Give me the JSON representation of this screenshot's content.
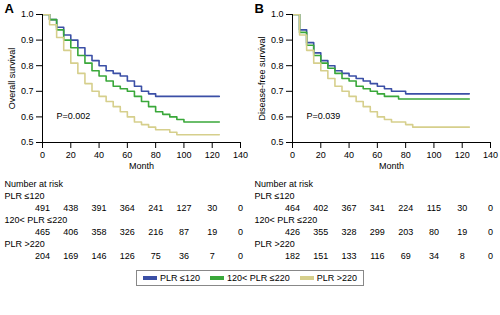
{
  "chart_data": [
    {
      "type": "line",
      "panel": "A",
      "annotation": "P=0.002",
      "x_label": "Month",
      "y_label": "Overall survival",
      "xlim": [
        0,
        140
      ],
      "xticks": [
        0,
        20,
        40,
        60,
        80,
        100,
        120,
        140
      ],
      "ylim": [
        0.5,
        1.0
      ],
      "yticks": [
        0.5,
        0.6,
        0.7,
        0.8,
        0.9,
        {
          "value": 1,
          "label": "1.0"
        }
      ],
      "grid": false,
      "legend": "bottom",
      "line_style": "step",
      "x": [
        0,
        5,
        10,
        15,
        20,
        25,
        30,
        35,
        40,
        45,
        50,
        55,
        60,
        65,
        70,
        75,
        80,
        85,
        90,
        95,
        100,
        105,
        110,
        115,
        120,
        125
      ],
      "series": [
        {
          "name": "PLR ≤120",
          "color": "#3b4fa6",
          "values": [
            1.0,
            0.98,
            0.95,
            0.92,
            0.9,
            0.87,
            0.84,
            0.82,
            0.8,
            0.78,
            0.77,
            0.76,
            0.74,
            0.72,
            0.7,
            0.69,
            0.68,
            0.68,
            0.68,
            0.68,
            0.68,
            0.68,
            0.68,
            0.68,
            0.68,
            0.68
          ]
        },
        {
          "name": "120< PLR ≤220",
          "color": "#3aa83a",
          "values": [
            1.0,
            0.98,
            0.94,
            0.9,
            0.87,
            0.84,
            0.81,
            0.78,
            0.76,
            0.74,
            0.72,
            0.71,
            0.7,
            0.68,
            0.66,
            0.64,
            0.62,
            0.61,
            0.6,
            0.59,
            0.58,
            0.58,
            0.58,
            0.58,
            0.58,
            0.58
          ]
        },
        {
          "name": "PLR >220",
          "color": "#d6cf8c",
          "values": [
            1.0,
            0.96,
            0.91,
            0.86,
            0.81,
            0.77,
            0.73,
            0.7,
            0.68,
            0.66,
            0.64,
            0.62,
            0.6,
            0.58,
            0.57,
            0.56,
            0.55,
            0.55,
            0.54,
            0.53,
            0.53,
            0.53,
            0.53,
            0.53,
            0.53,
            0.53
          ]
        }
      ],
      "risk_table": {
        "title": "Number at risk",
        "x": [
          0,
          20,
          40,
          60,
          80,
          100,
          120,
          140
        ],
        "rows": [
          {
            "label": "PLR ≤120",
            "values": [
              491,
              438,
              391,
              364,
              241,
              127,
              30,
              0
            ]
          },
          {
            "label": "120< PLR ≤220",
            "values": [
              465,
              406,
              358,
              326,
              216,
              87,
              19,
              0
            ]
          },
          {
            "label": "PLR >220",
            "values": [
              204,
              169,
              146,
              126,
              75,
              36,
              7,
              0
            ]
          }
        ]
      }
    },
    {
      "type": "line",
      "panel": "B",
      "annotation": "P=0.039",
      "x_label": "Month",
      "y_label": "Disease-free survival",
      "xlim": [
        0,
        140
      ],
      "xticks": [
        0,
        20,
        40,
        60,
        80,
        100,
        120,
        140
      ],
      "ylim": [
        0.5,
        1.0
      ],
      "yticks": [
        0.5,
        0.6,
        0.7,
        0.8,
        0.9,
        {
          "value": 1,
          "label": "1.0"
        }
      ],
      "grid": false,
      "legend": "bottom",
      "line_style": "step",
      "x": [
        0,
        5,
        10,
        15,
        20,
        25,
        30,
        35,
        40,
        45,
        50,
        55,
        60,
        65,
        70,
        75,
        80,
        85,
        90,
        95,
        100,
        105,
        110,
        115,
        120,
        125
      ],
      "series": [
        {
          "name": "PLR ≤120",
          "color": "#3b4fa6",
          "values": [
            1.0,
            0.94,
            0.89,
            0.85,
            0.82,
            0.8,
            0.78,
            0.77,
            0.76,
            0.75,
            0.74,
            0.73,
            0.72,
            0.71,
            0.7,
            0.7,
            0.69,
            0.69,
            0.69,
            0.69,
            0.69,
            0.69,
            0.69,
            0.69,
            0.69,
            0.69
          ]
        },
        {
          "name": "120< PLR ≤220",
          "color": "#3aa83a",
          "values": [
            1.0,
            0.93,
            0.88,
            0.84,
            0.81,
            0.79,
            0.77,
            0.75,
            0.74,
            0.72,
            0.71,
            0.7,
            0.69,
            0.68,
            0.68,
            0.67,
            0.67,
            0.67,
            0.67,
            0.67,
            0.67,
            0.67,
            0.67,
            0.67,
            0.67,
            0.67
          ]
        },
        {
          "name": "PLR >220",
          "color": "#d6cf8c",
          "values": [
            1.0,
            0.92,
            0.86,
            0.81,
            0.78,
            0.75,
            0.72,
            0.7,
            0.68,
            0.66,
            0.64,
            0.62,
            0.6,
            0.59,
            0.58,
            0.58,
            0.57,
            0.56,
            0.56,
            0.56,
            0.56,
            0.56,
            0.56,
            0.56,
            0.56,
            0.56
          ]
        }
      ],
      "risk_table": {
        "title": "Number at risk",
        "x": [
          0,
          20,
          40,
          60,
          80,
          100,
          120,
          140
        ],
        "rows": [
          {
            "label": "PLR ≤120",
            "values": [
              464,
              402,
              367,
              341,
              224,
              115,
              30,
              0
            ]
          },
          {
            "label": "120< PLR ≤220",
            "values": [
              426,
              355,
              328,
              299,
              203,
              80,
              19,
              0
            ]
          },
          {
            "label": "PLR >220",
            "values": [
              182,
              151,
              133,
              116,
              69,
              34,
              8,
              0
            ]
          }
        ]
      }
    }
  ]
}
